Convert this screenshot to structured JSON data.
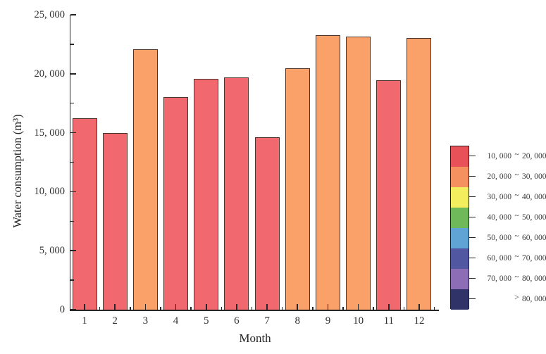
{
  "chart_data": {
    "type": "bar",
    "title": "",
    "xlabel": "Month",
    "ylabel": "Water consumption (m³)",
    "categories": [
      "1",
      "2",
      "3",
      "4",
      "5",
      "6",
      "7",
      "8",
      "9",
      "10",
      "11",
      "12"
    ],
    "values": [
      16200,
      14950,
      22050,
      18000,
      19550,
      19700,
      14600,
      20450,
      23250,
      23150,
      19450,
      23050
    ],
    "ylim": [
      0,
      25000
    ],
    "y_major_step": 5000,
    "y_minor_step": 2500,
    "y_tick_labels": [
      "0",
      "5, 000",
      "10, 000",
      "15, 000",
      "20, 000",
      "25, 000"
    ],
    "grid": false,
    "legend_position": "right",
    "bar_edge_color": "#4a342b",
    "value_colors": [
      {
        "min": 10000,
        "max": 20000,
        "fill": "#f1686e"
      },
      {
        "min": 20000,
        "max": 30000,
        "fill": "#f9a169"
      }
    ],
    "legend": {
      "entries": [
        {
          "low": "10, 000",
          "sep": "~",
          "high": "20, 000",
          "color": "#e95158"
        },
        {
          "low": "20, 000",
          "sep": "~",
          "high": "30, 000",
          "color": "#f5915f"
        },
        {
          "low": "30, 000",
          "sep": "~",
          "high": "40, 000",
          "color": "#f3ee5e"
        },
        {
          "low": "40, 000",
          "sep": "~",
          "high": "50, 000",
          "color": "#6fb95a"
        },
        {
          "low": "50, 000",
          "sep": "~",
          "high": "60, 000",
          "color": "#60a3d5"
        },
        {
          "low": "60, 000",
          "sep": "~",
          "high": "70, 000",
          "color": "#5157a0"
        },
        {
          "low": "70, 000",
          "sep": "~",
          "high": "80, 000",
          "color": "#8d6db5"
        },
        {
          "low": "",
          "sep": ">",
          "high": "80, 000",
          "color": "#2f3367"
        }
      ]
    }
  }
}
